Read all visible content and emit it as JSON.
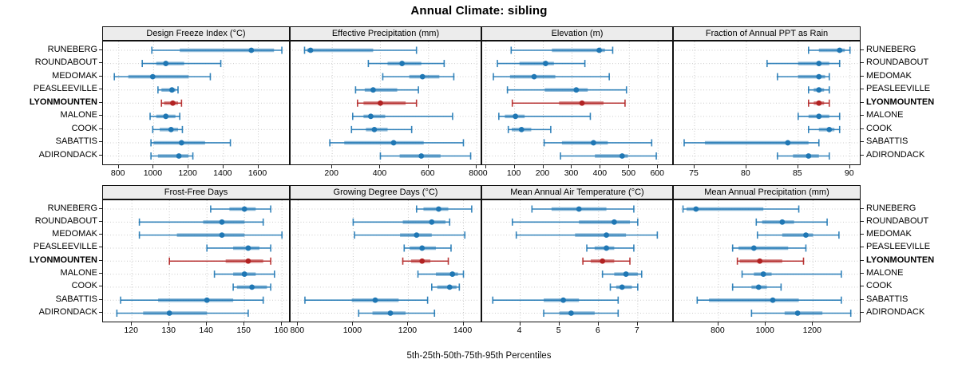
{
  "title": "Annual Climate: sibling",
  "caption": "5th-25th-50th-75th-95th Percentiles",
  "percentile_labels": [
    "5th",
    "25th",
    "50th",
    "75th",
    "95th"
  ],
  "locations": [
    "RUNEBERG",
    "ROUNDABOUT",
    "MEDOMAK",
    "PEASLEEVILLE",
    "LYONMOUNTEN",
    "MALONE",
    "COOK",
    "SABATTIS",
    "ADIRONDACK"
  ],
  "highlighted_location": "LYONMOUNTEN",
  "colors": {
    "series": "#1f77b4",
    "highlight": "#b22222",
    "strip_bg": "#ececec",
    "panel_border": "#111111",
    "grid": "#c9c9c9",
    "row_guide": "#cccccc",
    "tick": "#222222"
  },
  "grid": {
    "rows": 2,
    "cols": 4
  },
  "chart_data": [
    {
      "type": "dotplot-percentile-intervals",
      "title": "Design Freeze Index (°C)",
      "xlim": [
        710,
        1785
      ],
      "ticks": [
        800,
        1000,
        1200,
        1400,
        1600
      ],
      "values": [
        [
          990,
          1150,
          1560,
          1690,
          1735
        ],
        [
          935,
          1015,
          1070,
          1175,
          1385
        ],
        [
          775,
          855,
          995,
          1200,
          1325
        ],
        [
          1025,
          1045,
          1105,
          1125,
          1140
        ],
        [
          1045,
          1060,
          1110,
          1140,
          1160
        ],
        [
          980,
          1015,
          1070,
          1125,
          1150
        ],
        [
          995,
          1035,
          1100,
          1140,
          1165
        ],
        [
          985,
          1000,
          1160,
          1295,
          1440
        ],
        [
          985,
          1025,
          1145,
          1200,
          1225
        ]
      ]
    },
    {
      "type": "dotplot-percentile-intervals",
      "title": "Effective Precipitation (mm)",
      "xlim": [
        27,
        823
      ],
      "ticks": [
        200,
        400,
        600,
        800
      ],
      "values": [
        [
          85,
          95,
          110,
          370,
          550
        ],
        [
          350,
          430,
          490,
          570,
          665
        ],
        [
          410,
          520,
          575,
          645,
          705
        ],
        [
          297,
          335,
          370,
          470,
          558
        ],
        [
          305,
          330,
          400,
          505,
          550
        ],
        [
          285,
          330,
          360,
          420,
          700
        ],
        [
          280,
          340,
          375,
          430,
          530
        ],
        [
          190,
          250,
          455,
          580,
          745
        ],
        [
          400,
          480,
          570,
          650,
          775
        ]
      ]
    },
    {
      "type": "dotplot-percentile-intervals",
      "title": "Elevation (m)",
      "xlim": [
        -13,
        655
      ],
      "ticks": [
        0,
        100,
        200,
        300,
        400,
        500,
        600
      ],
      "values": [
        [
          88,
          230,
          395,
          415,
          442
        ],
        [
          40,
          117,
          208,
          237,
          345
        ],
        [
          26,
          84,
          168,
          242,
          430
        ],
        [
          75,
          205,
          315,
          355,
          490
        ],
        [
          92,
          255,
          335,
          410,
          485
        ],
        [
          45,
          66,
          103,
          135,
          364
        ],
        [
          78,
          90,
          124,
          158,
          226
        ],
        [
          203,
          265,
          375,
          425,
          578
        ],
        [
          260,
          380,
          475,
          495,
          594
        ]
      ]
    },
    {
      "type": "dotplot-percentile-intervals",
      "title": "Fraction of Annual PPT as Rain",
      "xlim": [
        73,
        91.1
      ],
      "ticks": [
        75,
        80,
        85,
        90
      ],
      "values": [
        [
          86,
          87,
          89,
          89.5,
          90
        ],
        [
          82,
          85,
          87,
          88,
          89
        ],
        [
          83,
          85,
          87,
          87.6,
          88
        ],
        [
          86,
          86.5,
          87,
          87.5,
          88
        ],
        [
          86,
          86.5,
          87,
          87.5,
          88
        ],
        [
          85,
          86,
          87,
          88,
          89
        ],
        [
          86,
          87,
          88,
          88.5,
          89
        ],
        [
          74,
          76,
          84,
          86,
          87
        ],
        [
          83,
          84.5,
          86,
          87,
          88
        ]
      ]
    },
    {
      "type": "dotplot-percentile-intervals",
      "title": "Frost-Free Days",
      "xlim": [
        112.3,
        162.3
      ],
      "ticks": [
        120,
        130,
        140,
        150,
        160
      ],
      "values": [
        [
          141,
          146,
          150,
          153,
          157
        ],
        [
          122,
          139,
          144,
          150,
          155
        ],
        [
          122,
          132,
          144,
          150,
          160
        ],
        [
          140,
          147,
          151,
          154,
          157
        ],
        [
          130,
          145,
          151,
          155,
          157
        ],
        [
          142,
          147,
          150,
          153,
          158
        ],
        [
          147,
          148,
          152,
          156,
          157
        ],
        [
          117,
          127,
          140,
          147,
          155
        ],
        [
          116,
          123,
          130,
          140,
          151
        ]
      ]
    },
    {
      "type": "dotplot-percentile-intervals",
      "title": "Growing Degree Days (°C)",
      "xlim": [
        773,
        1468
      ],
      "ticks": [
        800,
        1000,
        1200,
        1400
      ],
      "values": [
        [
          1230,
          1255,
          1310,
          1345,
          1430
        ],
        [
          1000,
          1180,
          1285,
          1335,
          1350
        ],
        [
          1005,
          1170,
          1230,
          1285,
          1405
        ],
        [
          1185,
          1205,
          1250,
          1300,
          1355
        ],
        [
          1180,
          1210,
          1250,
          1280,
          1345
        ],
        [
          1235,
          1300,
          1360,
          1380,
          1400
        ],
        [
          1285,
          1305,
          1350,
          1375,
          1385
        ],
        [
          825,
          995,
          1080,
          1165,
          1270
        ],
        [
          1020,
          1070,
          1135,
          1190,
          1295
        ]
      ]
    },
    {
      "type": "dotplot-percentile-intervals",
      "title": "Mean Annual Air Temperature (°C)",
      "xlim": [
        3.03,
        7.92
      ],
      "ticks": [
        4,
        5,
        6,
        7
      ],
      "values": [
        [
          4.3,
          4.8,
          5.5,
          6.2,
          6.9
        ],
        [
          3.8,
          5.5,
          6.4,
          6.8,
          7.0
        ],
        [
          3.9,
          5.4,
          6.2,
          6.7,
          7.5
        ],
        [
          5.7,
          5.9,
          6.2,
          6.4,
          6.9
        ],
        [
          5.6,
          5.8,
          6.1,
          6.4,
          6.8
        ],
        [
          6.1,
          6.4,
          6.7,
          7.0,
          7.1
        ],
        [
          6.3,
          6.45,
          6.6,
          6.85,
          7.0
        ],
        [
          3.3,
          4.6,
          5.1,
          5.5,
          6.5
        ],
        [
          4.6,
          5.0,
          5.3,
          5.9,
          6.5
        ]
      ]
    },
    {
      "type": "dotplot-percentile-intervals",
      "title": "Mean Annual Precipitation (mm)",
      "xlim": [
        611,
        1405
      ],
      "ticks": [
        800,
        1000,
        1200
      ],
      "values": [
        [
          650,
          665,
          705,
          990,
          1140
        ],
        [
          960,
          985,
          1070,
          1120,
          1260
        ],
        [
          965,
          1070,
          1170,
          1200,
          1310
        ],
        [
          860,
          885,
          950,
          1095,
          1170
        ],
        [
          880,
          890,
          975,
          1070,
          1160
        ],
        [
          900,
          950,
          990,
          1025,
          1320
        ],
        [
          860,
          940,
          970,
          1005,
          1065
        ],
        [
          710,
          760,
          1030,
          1140,
          1320
        ],
        [
          940,
          1080,
          1135,
          1240,
          1360
        ]
      ]
    }
  ]
}
